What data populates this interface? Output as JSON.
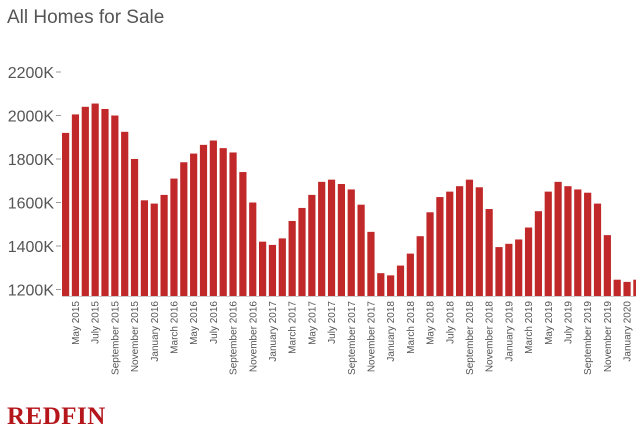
{
  "title": "All Homes for Sale",
  "logo": "REDFIN",
  "colors": {
    "bar": "#c0282a",
    "text": "#555555",
    "axis": "#999999",
    "logo": "#b5161c"
  },
  "chart_data": {
    "type": "bar",
    "title": "All Homes for Sale",
    "xlabel": "",
    "ylabel": "",
    "ylim": [
      1150,
      2200
    ],
    "grid": false,
    "y_ticks": [
      {
        "value": 1200,
        "label": "1200K"
      },
      {
        "value": 1400,
        "label": "1400K"
      },
      {
        "value": 1600,
        "label": "1600K"
      },
      {
        "value": 1800,
        "label": "1800K"
      },
      {
        "value": 2000,
        "label": "2000K"
      },
      {
        "value": 2200,
        "label": "2200K"
      }
    ],
    "categories": [
      "April 2015",
      "May 2015",
      "June 2015",
      "July 2015",
      "August 2015",
      "September 2015",
      "October 2015",
      "November 2015",
      "December 2015",
      "January 2016",
      "February 2016",
      "March 2016",
      "April 2016",
      "May 2016",
      "June 2016",
      "July 2016",
      "August 2016",
      "September 2016",
      "October 2016",
      "November 2016",
      "December 2016",
      "January 2017",
      "February 2017",
      "March 2017",
      "April 2017",
      "May 2017",
      "June 2017",
      "July 2017",
      "August 2017",
      "September 2017",
      "October 2017",
      "November 2017",
      "December 2017",
      "January 2018",
      "February 2018",
      "March 2018",
      "April 2018",
      "May 2018",
      "June 2018",
      "July 2018",
      "August 2018",
      "September 2018",
      "October 2018",
      "November 2018",
      "December 2018",
      "January 2019",
      "February 2019",
      "March 2019",
      "April 2019",
      "May 2019",
      "June 2019",
      "July 2019",
      "August 2019",
      "September 2019",
      "October 2019",
      "November 2019",
      "December 2019",
      "January 2020",
      "February 2020",
      "March 2020",
      "April 2020",
      "May 2020"
    ],
    "tick_labels": [
      {
        "index": 1,
        "label": "May 2015"
      },
      {
        "index": 3,
        "label": "July 2015"
      },
      {
        "index": 5,
        "label": "September 2015"
      },
      {
        "index": 7,
        "label": "November 2015"
      },
      {
        "index": 9,
        "label": "January 2016"
      },
      {
        "index": 11,
        "label": "March 2016"
      },
      {
        "index": 13,
        "label": "May 2016"
      },
      {
        "index": 15,
        "label": "July 2016"
      },
      {
        "index": 17,
        "label": "September 2016"
      },
      {
        "index": 19,
        "label": "November 2016"
      },
      {
        "index": 21,
        "label": "January 2017"
      },
      {
        "index": 23,
        "label": "March 2017"
      },
      {
        "index": 25,
        "label": "May 2017"
      },
      {
        "index": 27,
        "label": "July 2017"
      },
      {
        "index": 29,
        "label": "September 2017"
      },
      {
        "index": 31,
        "label": "November 2017"
      },
      {
        "index": 33,
        "label": "January 2018"
      },
      {
        "index": 35,
        "label": "March 2018"
      },
      {
        "index": 37,
        "label": "May 2018"
      },
      {
        "index": 39,
        "label": "July 2018"
      },
      {
        "index": 41,
        "label": "September 2018"
      },
      {
        "index": 43,
        "label": "November 2018"
      },
      {
        "index": 45,
        "label": "January 2019"
      },
      {
        "index": 47,
        "label": "March 2019"
      },
      {
        "index": 49,
        "label": "May 2019"
      },
      {
        "index": 51,
        "label": "July 2019"
      },
      {
        "index": 53,
        "label": "September 2019"
      },
      {
        "index": 55,
        "label": "November 2019"
      },
      {
        "index": 57,
        "label": "January 2020"
      },
      {
        "index": 59,
        "label": "March 2020"
      },
      {
        "index": 61,
        "label": "May 2020"
      }
    ],
    "values": [
      1920,
      2005,
      2040,
      2055,
      2030,
      2000,
      1925,
      1800,
      1610,
      1595,
      1635,
      1710,
      1785,
      1825,
      1865,
      1885,
      1850,
      1830,
      1740,
      1600,
      1420,
      1405,
      1435,
      1515,
      1575,
      1635,
      1695,
      1705,
      1685,
      1660,
      1590,
      1465,
      1275,
      1265,
      1310,
      1365,
      1445,
      1555,
      1625,
      1650,
      1675,
      1705,
      1670,
      1570,
      1395,
      1410,
      1430,
      1485,
      1560,
      1650,
      1695,
      1675,
      1660,
      1645,
      1595,
      1450,
      1245,
      1235,
      1245,
      1295,
      1265,
      1220
    ]
  }
}
